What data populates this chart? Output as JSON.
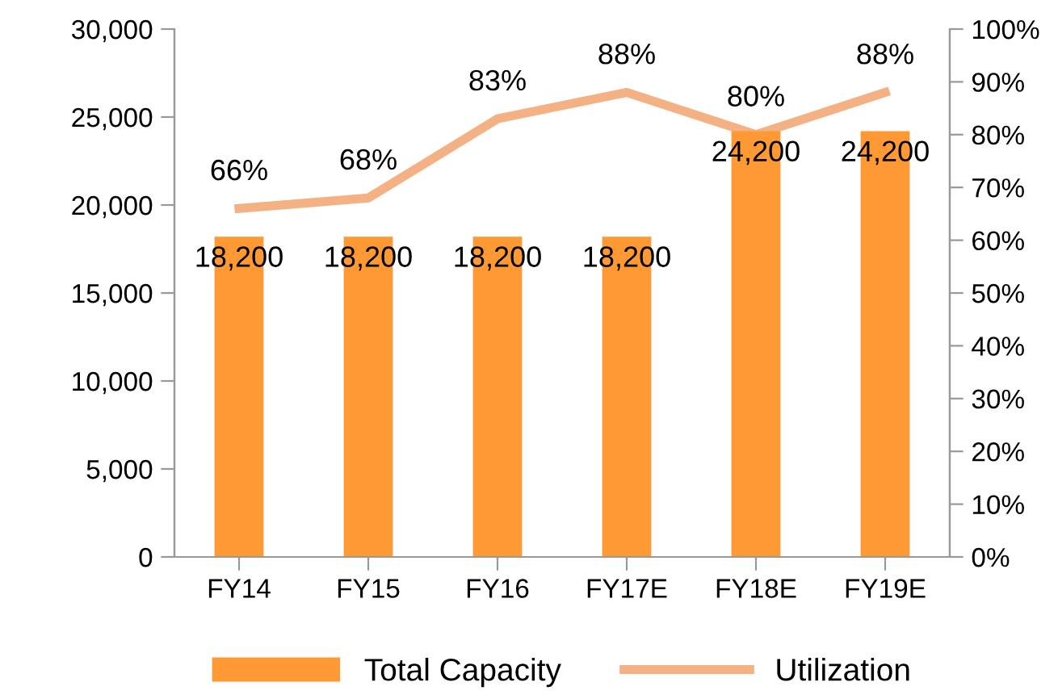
{
  "chart_data": {
    "type": "bar",
    "categories": [
      "FY14",
      "FY15",
      "FY16",
      "FY17E",
      "FY18E",
      "FY19E"
    ],
    "series": [
      {
        "name": "Total Capacity",
        "color": "#ff9933",
        "values": [
          18200,
          18200,
          18200,
          18200,
          24200,
          24200
        ],
        "value_labels": [
          "18,200",
          "18,200",
          "18,200",
          "18,200",
          "24,200",
          "24,200"
        ]
      },
      {
        "name": "Utilization",
        "type": "line",
        "axis": "y2",
        "color": "#f4b183",
        "values": [
          66,
          68,
          83,
          88,
          80,
          88
        ],
        "value_labels": [
          "66%",
          "68%",
          "83%",
          "88%",
          "80%",
          "88%"
        ]
      }
    ],
    "ylim": [
      0,
      30000
    ],
    "yticks": [
      {
        "value": 0,
        "label": "0"
      },
      {
        "value": 5000,
        "label": "5,000"
      },
      {
        "value": 10000,
        "label": "10,000"
      },
      {
        "value": 15000,
        "label": "15,000"
      },
      {
        "value": 20000,
        "label": "20,000"
      },
      {
        "value": 25000,
        "label": "25,000"
      },
      {
        "value": 30000,
        "label": "30,000"
      }
    ],
    "y2lim": [
      0,
      100
    ],
    "y2ticks": [
      {
        "value": 0,
        "label": "0%"
      },
      {
        "value": 10,
        "label": "10%"
      },
      {
        "value": 20,
        "label": "20%"
      },
      {
        "value": 30,
        "label": "30%"
      },
      {
        "value": 40,
        "label": "40%"
      },
      {
        "value": 50,
        "label": "50%"
      },
      {
        "value": 60,
        "label": "60%"
      },
      {
        "value": 70,
        "label": "70%"
      },
      {
        "value": 80,
        "label": "80%"
      },
      {
        "value": 90,
        "label": "90%"
      },
      {
        "value": 100,
        "label": "100%"
      }
    ],
    "grid": false,
    "legend": "bottom",
    "marker": "none"
  }
}
